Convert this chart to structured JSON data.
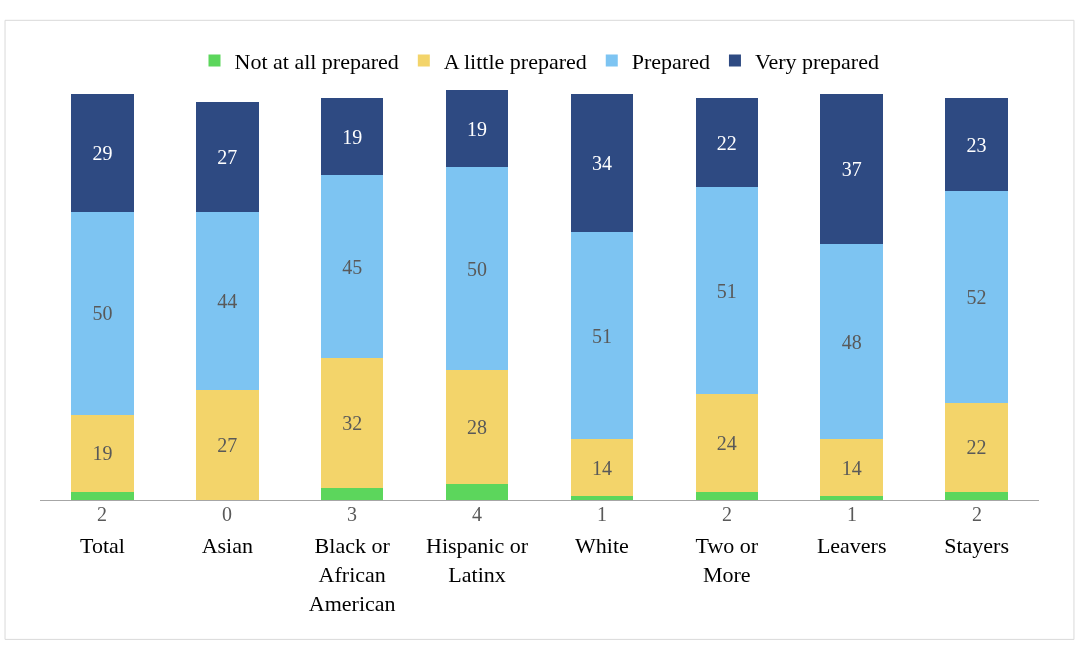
{
  "chart_data": {
    "type": "bar",
    "stacked": true,
    "data_labels": true,
    "legend": "top",
    "categories": [
      "Total",
      "Asian",
      "Black or\nAfrican\nAmerican",
      "Hispanic or\nLatinx",
      "White",
      "Two or\nMore",
      "Leavers",
      "Stayers"
    ],
    "series": [
      {
        "name": "Not at all prepared",
        "color": "#5cd65c",
        "values": [
          2,
          0,
          3,
          4,
          1,
          2,
          1,
          2
        ]
      },
      {
        "name": "A little prepared",
        "color": "#f3d46a",
        "values": [
          19,
          27,
          32,
          28,
          14,
          24,
          14,
          22
        ]
      },
      {
        "name": "Prepared",
        "color": "#7dc4f2",
        "values": [
          50,
          44,
          45,
          50,
          51,
          51,
          48,
          52
        ]
      },
      {
        "name": "Very prepared",
        "color": "#2e4a82",
        "values": [
          29,
          27,
          19,
          19,
          34,
          22,
          37,
          23
        ]
      }
    ]
  }
}
